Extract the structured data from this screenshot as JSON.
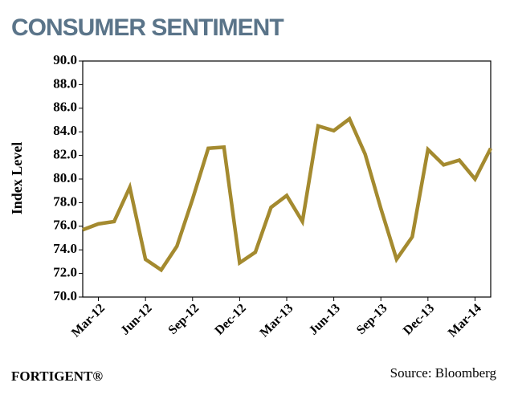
{
  "chart_data": {
    "type": "line",
    "title": "CONSUMER SENTIMENT",
    "y_label": "Index Level",
    "logo": "FORTIGENT®",
    "source": "Source: Bloomberg",
    "categories": [
      null,
      "Mar-12",
      null,
      null,
      "Jun-12",
      null,
      null,
      "Sep-12",
      null,
      null,
      "Dec-12",
      null,
      null,
      "Mar-13",
      null,
      null,
      "Jun-13",
      null,
      null,
      "Sep-13",
      null,
      null,
      "Dec-13",
      null,
      null,
      "Mar-14",
      null
    ],
    "values": [
      75.7,
      76.2,
      76.4,
      79.3,
      73.2,
      72.3,
      74.3,
      78.3,
      82.6,
      82.7,
      72.9,
      73.8,
      77.6,
      78.6,
      76.4,
      84.5,
      84.1,
      85.1,
      82.1,
      77.5,
      73.2,
      75.1,
      82.5,
      81.2,
      81.6,
      80.0,
      82.6
    ],
    "color": "#a48a2f",
    "ylim": [
      70,
      90
    ],
    "yticks": [
      {
        "value": 70,
        "label": "70.0"
      },
      {
        "value": 72,
        "label": "72.0"
      },
      {
        "value": 74,
        "label": "74.0"
      },
      {
        "value": 76,
        "label": "76.0"
      },
      {
        "value": 78,
        "label": "78.0"
      },
      {
        "value": 80,
        "label": "80.0"
      },
      {
        "value": 82,
        "label": "82.0"
      },
      {
        "value": 84,
        "label": "84.0"
      },
      {
        "value": 86,
        "label": "86.0"
      },
      {
        "value": 88,
        "label": "88.0"
      },
      {
        "value": 90,
        "label": "90.0"
      }
    ],
    "grid": false
  }
}
